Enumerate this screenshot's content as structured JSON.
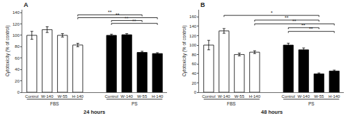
{
  "chart_data": [
    {
      "type": "bar",
      "title": "A",
      "xlabel": "24 hours",
      "ylabel": "Cytotoxicity (% of control)",
      "categories": [
        "Control",
        "W-140",
        "W-55",
        "H-140",
        "Control",
        "W-140",
        "W-55",
        "H-140"
      ],
      "values": [
        100,
        110,
        100,
        83,
        100,
        101,
        70,
        68
      ],
      "errors": [
        7,
        5,
        3,
        3,
        2,
        2,
        2,
        1.5
      ],
      "colors": [
        "white",
        "white",
        "white",
        "white",
        "black",
        "black",
        "black",
        "black"
      ],
      "groups": [
        {
          "label": "FBS",
          "first": 0,
          "last": 3
        },
        {
          "label": "PS",
          "first": 4,
          "last": 7
        }
      ],
      "significance": [
        {
          "from": 3,
          "to": 6,
          "y": 136,
          "label": "**"
        },
        {
          "from": 3,
          "to": 7,
          "y": 131,
          "label": "**"
        },
        {
          "from": 4,
          "to": 6,
          "y": 126,
          "label": "**"
        },
        {
          "from": 4,
          "to": 7,
          "y": 121,
          "label": "**"
        }
      ],
      "ylim": [
        0,
        145
      ],
      "yticks": [
        0,
        20,
        40,
        60,
        80,
        100,
        120,
        140
      ],
      "grid": false
    },
    {
      "type": "bar",
      "title": "B",
      "xlabel": "48 hours",
      "ylabel": "Cytotoxicity (% of control)",
      "categories": [
        "Control",
        "W-140",
        "W-55",
        "H-140",
        "Control",
        "W-140",
        "W-55",
        "H-140"
      ],
      "values": [
        100,
        130,
        80,
        85,
        100,
        90,
        39,
        45
      ],
      "errors": [
        10,
        5,
        3,
        3,
        4,
        4,
        2,
        2
      ],
      "colors": [
        "white",
        "white",
        "white",
        "white",
        "black",
        "black",
        "black",
        "black"
      ],
      "groups": [
        {
          "label": "FBS",
          "first": 0,
          "last": 3
        },
        {
          "label": "PS",
          "first": 4,
          "last": 7
        }
      ],
      "significance": [
        {
          "from": 1,
          "to": 6,
          "y": 163,
          "label": "*"
        },
        {
          "from": 3,
          "to": 6,
          "y": 153,
          "label": "**"
        },
        {
          "from": 3,
          "to": 7,
          "y": 145,
          "label": "**"
        },
        {
          "from": 4,
          "to": 6,
          "y": 137,
          "label": "**"
        },
        {
          "from": 4,
          "to": 7,
          "y": 129,
          "label": "**"
        }
      ],
      "ylim": [
        0,
        175
      ],
      "yticks": [
        0,
        20,
        40,
        60,
        80,
        100,
        120,
        140,
        160
      ],
      "grid": false
    }
  ]
}
